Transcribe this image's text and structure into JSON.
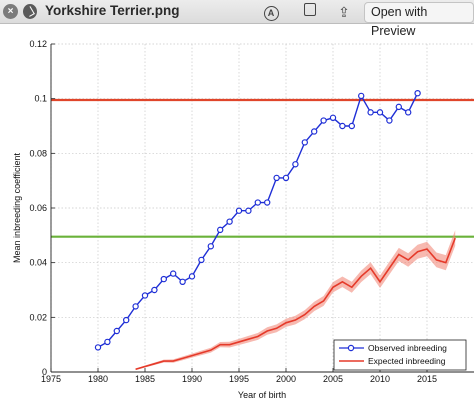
{
  "window": {
    "title": "Yorkshire Terrier.png",
    "close_symbol": "×",
    "file_icon": "checkmark-circle-icon",
    "markup_icon": "markup-pen-icon",
    "markup_letter": "A",
    "rotate_icon": "rotate-icon",
    "share_icon": "share-icon",
    "share_symbol": "⇪",
    "open_button": "Open with Preview"
  },
  "chart_data": {
    "type": "line",
    "xlabel": "Year of birth",
    "ylabel": "Mean inbreeding coefficient",
    "xlim": [
      1975,
      2020
    ],
    "ylim": [
      0,
      0.12
    ],
    "xticks": [
      "1975",
      "1980",
      "1985",
      "1990",
      "1995",
      "2000",
      "2005",
      "2010",
      "2015"
    ],
    "yticks": [
      "0",
      "0.02",
      "0.04",
      "0.06",
      "0.08",
      "0.1",
      "0.12"
    ],
    "grid": true,
    "legend_position": "bottom-right",
    "reference_lines": [
      {
        "y": 0.0995,
        "color": "#e0452a"
      },
      {
        "y": 0.0495,
        "color": "#6ab23a"
      }
    ],
    "series": [
      {
        "name": "Observed inbreeding",
        "color": "#1f2fd6",
        "marker": "circle",
        "x": [
          1980,
          1981,
          1982,
          1983,
          1984,
          1985,
          1986,
          1987,
          1988,
          1989,
          1990,
          1991,
          1992,
          1993,
          1994,
          1995,
          1996,
          1997,
          1998,
          1999,
          2000,
          2001,
          2002,
          2003,
          2004,
          2005,
          2006,
          2007,
          2008,
          2009,
          2010,
          2011,
          2012,
          2013,
          2014
        ],
        "values": [
          0.009,
          0.011,
          0.015,
          0.019,
          0.024,
          0.028,
          0.03,
          0.034,
          0.036,
          0.033,
          0.035,
          0.041,
          0.046,
          0.052,
          0.055,
          0.059,
          0.059,
          0.062,
          0.062,
          0.071,
          0.071,
          0.076,
          0.084,
          0.088,
          0.092,
          0.093,
          0.09,
          0.09,
          0.101,
          0.095,
          0.095,
          0.092,
          0.097,
          0.095,
          0.102
        ]
      },
      {
        "name": "Expected inbreeding",
        "color": "#e53a2a",
        "marker": "none",
        "x": [
          1984,
          1985,
          1986,
          1987,
          1988,
          1989,
          1990,
          1991,
          1992,
          1993,
          1994,
          1995,
          1996,
          1997,
          1998,
          1999,
          2000,
          2001,
          2002,
          2003,
          2004,
          2005,
          2006,
          2007,
          2008,
          2009,
          2010,
          2011,
          2012,
          2013,
          2014,
          2015,
          2016,
          2017,
          2018
        ],
        "values": [
          0.001,
          0.002,
          0.003,
          0.004,
          0.004,
          0.005,
          0.006,
          0.007,
          0.008,
          0.01,
          0.01,
          0.011,
          0.012,
          0.013,
          0.015,
          0.016,
          0.018,
          0.019,
          0.021,
          0.024,
          0.026,
          0.031,
          0.033,
          0.031,
          0.035,
          0.038,
          0.033,
          0.038,
          0.043,
          0.041,
          0.044,
          0.045,
          0.041,
          0.04,
          0.049
        ]
      }
    ]
  }
}
